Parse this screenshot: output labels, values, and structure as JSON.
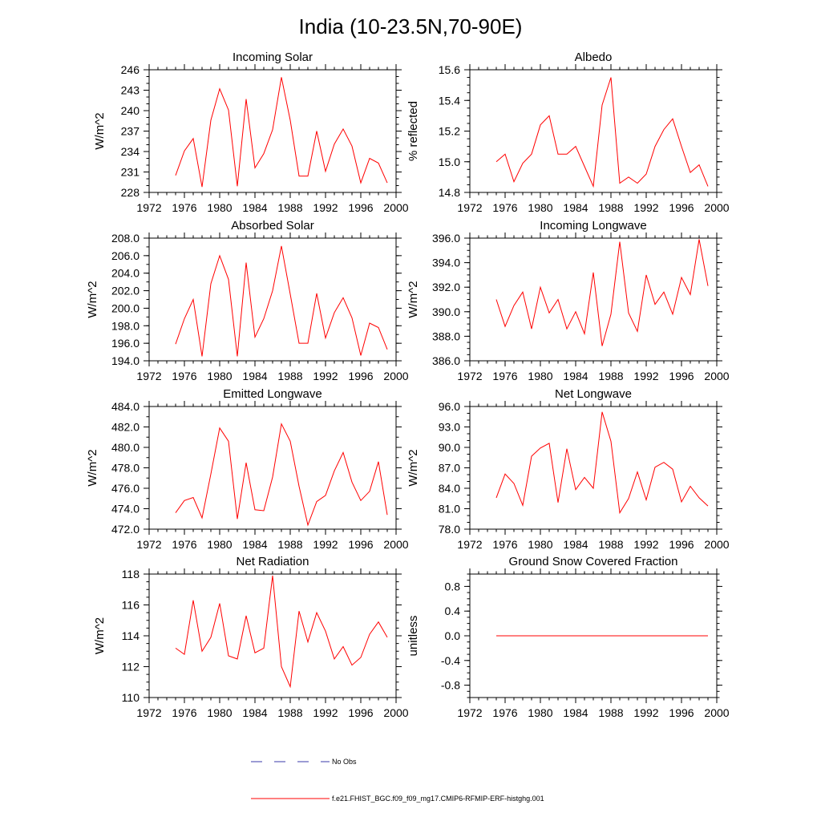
{
  "title": "India (10-23.5N,70-90E)",
  "colors": {
    "series": "#ff0000",
    "obs": "#3a3aa8",
    "axis": "#000000"
  },
  "legend": [
    {
      "label": "No Obs",
      "style": "dashed",
      "color": "#3a3aa8"
    },
    {
      "label": "f.e21.FHIST_BGC.f09_f09_mg17.CMIP6-RFMIP-ERF-histghg.001",
      "style": "solid",
      "color": "#ff0000"
    }
  ],
  "chart_data": [
    {
      "type": "line",
      "title": "Incoming Solar",
      "ylabel": "W/m^2",
      "xlim": [
        1972,
        2000
      ],
      "xticks": [
        1972,
        1976,
        1980,
        1984,
        1988,
        1992,
        1996,
        2000
      ],
      "ylim": [
        228,
        246
      ],
      "yticks": [
        "228",
        "231",
        "234",
        "237",
        "240",
        "243",
        "246"
      ],
      "yminor": 1,
      "x": [
        1975,
        1976,
        1977,
        1978,
        1979,
        1980,
        1981,
        1982,
        1983,
        1984,
        1985,
        1986,
        1987,
        1988,
        1989,
        1990,
        1991,
        1992,
        1993,
        1994,
        1995,
        1996,
        1997,
        1998,
        1999
      ],
      "values": [
        230.5,
        234.1,
        235.9,
        228.8,
        238.6,
        243.2,
        240.1,
        228.9,
        241.7,
        231.6,
        233.7,
        237.2,
        244.9,
        238.6,
        230.4,
        230.4,
        237.0,
        231.1,
        235.1,
        237.3,
        234.8,
        229.4,
        233.0,
        232.3,
        229.4
      ]
    },
    {
      "type": "line",
      "title": "Albedo",
      "ylabel": "% reflected",
      "xlim": [
        1972,
        2000
      ],
      "xticks": [
        1972,
        1976,
        1980,
        1984,
        1988,
        1992,
        1996,
        2000
      ],
      "ylim": [
        14.8,
        15.6
      ],
      "yticks": [
        "14.8",
        "15.0",
        "15.2",
        "15.4",
        "15.6"
      ],
      "yminor": 0.05,
      "x": [
        1975,
        1976,
        1977,
        1978,
        1979,
        1980,
        1981,
        1982,
        1983,
        1984,
        1985,
        1986,
        1987,
        1988,
        1989,
        1990,
        1991,
        1992,
        1993,
        1994,
        1995,
        1996,
        1997,
        1998,
        1999
      ],
      "values": [
        15.0,
        15.05,
        14.87,
        14.99,
        15.05,
        15.24,
        15.3,
        15.05,
        15.05,
        15.1,
        14.97,
        14.84,
        15.37,
        15.55,
        14.86,
        14.9,
        14.86,
        14.92,
        15.1,
        15.21,
        15.28,
        15.1,
        14.93,
        14.98,
        14.84
      ]
    },
    {
      "type": "line",
      "title": "Absorbed Solar",
      "ylabel": "W/m^2",
      "xlim": [
        1972,
        2000
      ],
      "xticks": [
        1972,
        1976,
        1980,
        1984,
        1988,
        1992,
        1996,
        2000
      ],
      "ylim": [
        194,
        208
      ],
      "yticks": [
        "194.0",
        "196.0",
        "198.0",
        "200.0",
        "202.0",
        "204.0",
        "206.0",
        "208.0"
      ],
      "yminor": 1,
      "x": [
        1975,
        1976,
        1977,
        1978,
        1979,
        1980,
        1981,
        1982,
        1983,
        1984,
        1985,
        1986,
        1987,
        1988,
        1989,
        1990,
        1991,
        1992,
        1993,
        1994,
        1995,
        1996,
        1997,
        1998,
        1999
      ],
      "values": [
        195.9,
        198.8,
        201.0,
        194.5,
        202.8,
        206.0,
        203.3,
        194.5,
        205.2,
        196.7,
        198.8,
        202.0,
        207.1,
        201.6,
        196.0,
        196.0,
        201.7,
        196.6,
        199.5,
        201.2,
        198.9,
        194.6,
        198.3,
        197.8,
        195.3
      ]
    },
    {
      "type": "line",
      "title": "Incoming Longwave",
      "ylabel": "W/m^2",
      "xlim": [
        1972,
        2000
      ],
      "xticks": [
        1972,
        1976,
        1980,
        1984,
        1988,
        1992,
        1996,
        2000
      ],
      "ylim": [
        386,
        396
      ],
      "yticks": [
        "386.0",
        "388.0",
        "390.0",
        "392.0",
        "394.0",
        "396.0"
      ],
      "yminor": 0.5,
      "x": [
        1975,
        1976,
        1977,
        1978,
        1979,
        1980,
        1981,
        1982,
        1983,
        1984,
        1985,
        1986,
        1987,
        1988,
        1989,
        1990,
        1991,
        1992,
        1993,
        1994,
        1995,
        1996,
        1997,
        1998,
        1999
      ],
      "values": [
        391.0,
        388.8,
        390.5,
        391.6,
        388.6,
        392.0,
        389.9,
        391.0,
        388.6,
        390.0,
        388.2,
        393.2,
        387.2,
        389.8,
        395.7,
        389.9,
        388.4,
        393.0,
        390.6,
        391.6,
        389.8,
        392.8,
        391.4,
        395.9,
        392.1
      ]
    },
    {
      "type": "line",
      "title": "Emitted Longwave",
      "ylabel": "W/m^2",
      "xlim": [
        1972,
        2000
      ],
      "xticks": [
        1972,
        1976,
        1980,
        1984,
        1988,
        1992,
        1996,
        2000
      ],
      "ylim": [
        472,
        484
      ],
      "yticks": [
        "472.0",
        "474.0",
        "476.0",
        "478.0",
        "480.0",
        "482.0",
        "484.0"
      ],
      "yminor": 1,
      "x": [
        1975,
        1976,
        1977,
        1978,
        1979,
        1980,
        1981,
        1982,
        1983,
        1984,
        1985,
        1986,
        1987,
        1988,
        1989,
        1990,
        1991,
        1992,
        1993,
        1994,
        1995,
        1996,
        1997,
        1998,
        1999
      ],
      "values": [
        473.6,
        474.8,
        475.1,
        473.1,
        477.4,
        481.9,
        480.6,
        473.0,
        478.5,
        473.9,
        473.8,
        477.1,
        482.3,
        480.6,
        476.2,
        472.4,
        474.7,
        475.3,
        477.7,
        479.5,
        476.6,
        474.8,
        475.7,
        478.6,
        473.4
      ]
    },
    {
      "type": "line",
      "title": "Net Longwave",
      "ylabel": "W/m^2",
      "xlim": [
        1972,
        2000
      ],
      "xticks": [
        1972,
        1976,
        1980,
        1984,
        1988,
        1992,
        1996,
        2000
      ],
      "ylim": [
        78,
        96
      ],
      "yticks": [
        "78.0",
        "81.0",
        "84.0",
        "87.0",
        "90.0",
        "93.0",
        "96.0"
      ],
      "yminor": 1,
      "x": [
        1975,
        1976,
        1977,
        1978,
        1979,
        1980,
        1981,
        1982,
        1983,
        1984,
        1985,
        1986,
        1987,
        1988,
        1989,
        1990,
        1991,
        1992,
        1993,
        1994,
        1995,
        1996,
        1997,
        1998,
        1999
      ],
      "values": [
        82.6,
        86.1,
        84.7,
        81.5,
        88.7,
        89.9,
        90.6,
        81.9,
        89.8,
        83.8,
        85.6,
        84.0,
        95.2,
        90.9,
        80.4,
        82.5,
        86.4,
        82.3,
        87.1,
        87.8,
        86.8,
        82.0,
        84.3,
        82.6,
        81.4
      ]
    },
    {
      "type": "line",
      "title": "Net Radiation",
      "ylabel": "W/m^2",
      "xlim": [
        1972,
        2000
      ],
      "xticks": [
        1972,
        1976,
        1980,
        1984,
        1988,
        1992,
        1996,
        2000
      ],
      "ylim": [
        110,
        118
      ],
      "yticks": [
        "110",
        "112",
        "114",
        "116",
        "118"
      ],
      "yminor": 0.5,
      "x": [
        1975,
        1976,
        1977,
        1978,
        1979,
        1980,
        1981,
        1982,
        1983,
        1984,
        1985,
        1986,
        1987,
        1988,
        1989,
        1990,
        1991,
        1992,
        1993,
        1994,
        1995,
        1996,
        1997,
        1998,
        1999
      ],
      "values": [
        113.2,
        112.8,
        116.3,
        113.0,
        113.9,
        116.1,
        112.7,
        112.5,
        115.3,
        112.9,
        113.2,
        117.9,
        112.0,
        110.7,
        115.6,
        113.6,
        115.5,
        114.3,
        112.5,
        113.3,
        112.1,
        112.6,
        114.1,
        114.9,
        113.9
      ]
    },
    {
      "type": "line",
      "title": "Ground Snow Covered Fraction",
      "ylabel": "unitless",
      "xlim": [
        1972,
        2000
      ],
      "xticks": [
        1972,
        1976,
        1980,
        1984,
        1988,
        1992,
        1996,
        2000
      ],
      "ylim": [
        -1.0,
        1.0
      ],
      "yticks": [
        "-0.8",
        "-0.4",
        "0.0",
        "0.4",
        "0.8"
      ],
      "ytick_values": [
        -0.8,
        -0.4,
        0.0,
        0.4,
        0.8
      ],
      "yminor": 0.1,
      "x": [
        1975,
        1999
      ],
      "values": [
        0.0,
        0.0
      ]
    }
  ]
}
